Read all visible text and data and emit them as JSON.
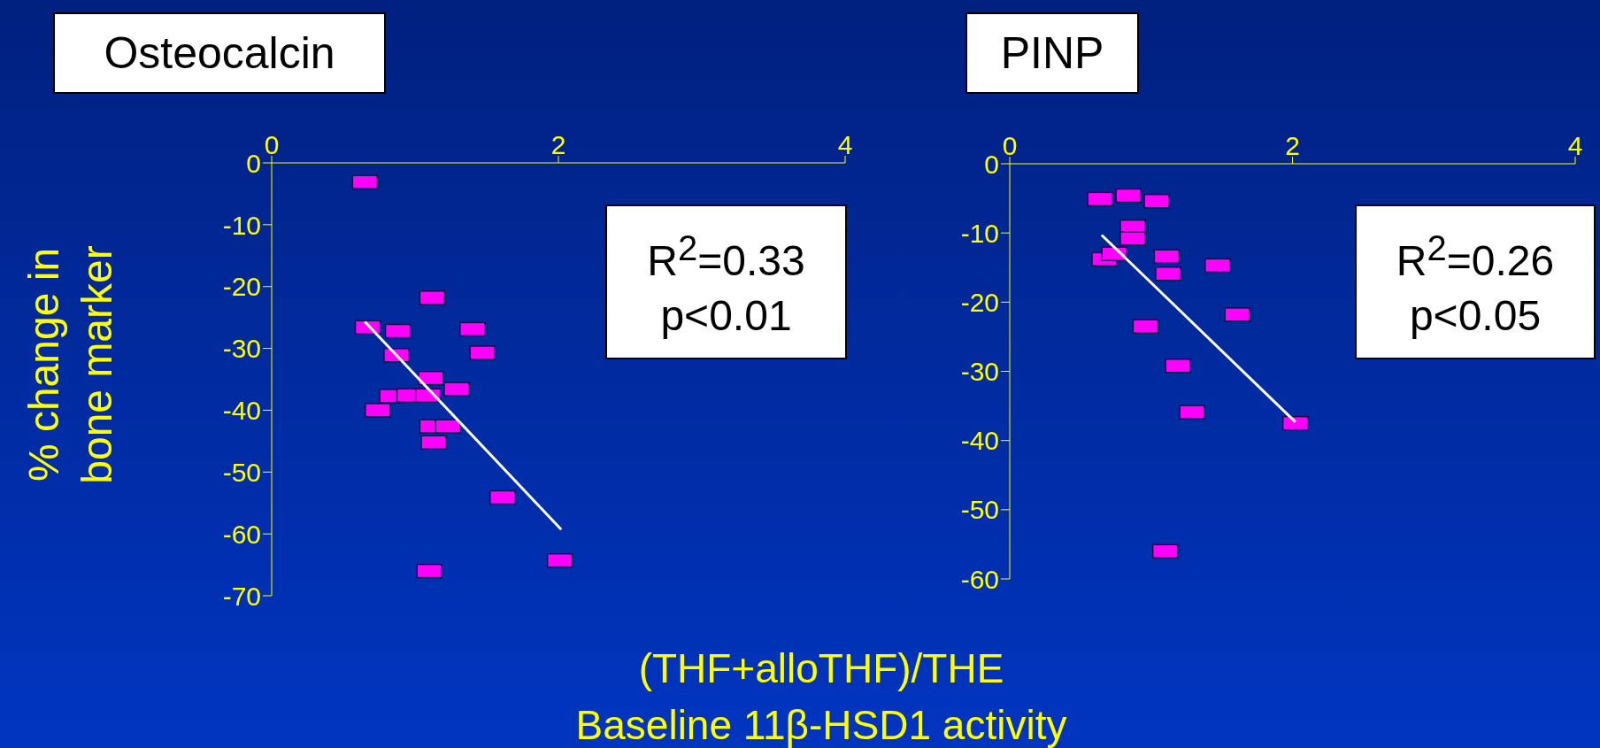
{
  "chart_data": [
    {
      "type": "scatter",
      "title": "Osteocalcin",
      "ylabel": "% change in bone marker",
      "xlabel": "(THF+alloTHF)/THE\nBaseline 11β-HSD1 activity",
      "annotations": [
        "R$^{2}$=0.33",
        "p<0.01"
      ],
      "xlim": [
        0,
        4
      ],
      "xticks": [
        0,
        2,
        4
      ],
      "ylim": [
        -70,
        0
      ],
      "yticks": [
        0,
        -10,
        -20,
        -30,
        -40,
        -50,
        -60,
        -70
      ],
      "grid": false,
      "series": [
        {
          "type": "scatter",
          "marker": "square",
          "color": "#ff00ff",
          "x": [
            0.65,
            1.12,
            0.67,
            0.88,
            1.4,
            0.87,
            1.47,
            1.11,
            1.29,
            0.84,
            0.96,
            1.09,
            0.74,
            1.12,
            1.23,
            1.13,
            1.61,
            2.01,
            1.1
          ],
          "values": [
            -3.1,
            -21.8,
            -26.6,
            -27.2,
            -26.9,
            -31.1,
            -30.7,
            -34.8,
            -36.6,
            -37.7,
            -37.6,
            -37.6,
            -40,
            -42.6,
            -42.6,
            -45.2,
            -54.1,
            -64.3,
            -66
          ]
        },
        {
          "type": "line",
          "color": "#ffffff",
          "x": [
            0.65,
            2.02
          ],
          "values": [
            -25.7,
            -59.3
          ]
        }
      ]
    },
    {
      "type": "scatter",
      "title": "PINP",
      "annotations": [
        "R$^{2}$=0.26",
        "p<0.05"
      ],
      "xlim": [
        0,
        4
      ],
      "xticks": [
        0,
        2,
        4
      ],
      "ylim": [
        -60,
        0
      ],
      "yticks": [
        0,
        -10,
        -20,
        -30,
        -40,
        -50,
        -60
      ],
      "grid": false,
      "series": [
        {
          "type": "scatter",
          "marker": "square",
          "color": "#ff00ff",
          "x": [
            0.64,
            0.84,
            1.04,
            0.87,
            0.87,
            0.67,
            0.74,
            1.11,
            1.12,
            1.47,
            1.61,
            0.96,
            1.19,
            1.29,
            2.02,
            1.1
          ],
          "values": [
            -5.1,
            -4.6,
            -5.4,
            -9.1,
            -10.8,
            -13.8,
            -13,
            -13.4,
            -15.9,
            -14.7,
            -21.8,
            -23.5,
            -29.2,
            -35.9,
            -37.5,
            -56
          ]
        },
        {
          "type": "line",
          "color": "#ffffff",
          "x": [
            0.65,
            2.02
          ],
          "values": [
            -10.3,
            -37.3
          ]
        }
      ]
    }
  ]
}
